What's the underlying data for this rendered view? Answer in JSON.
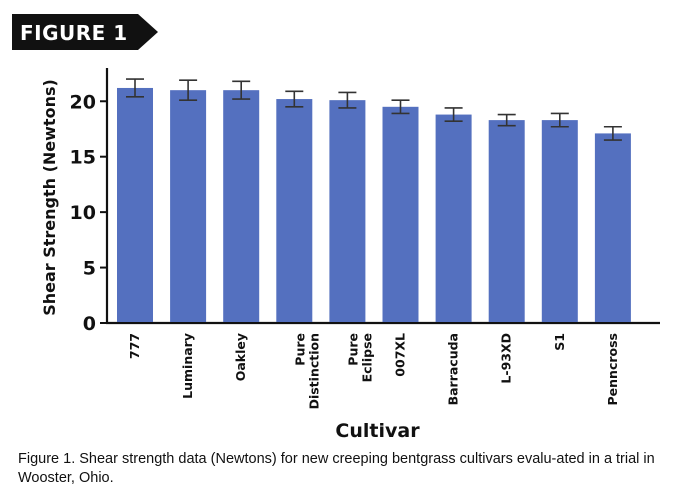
{
  "figure_label": "FIGURE 1",
  "caption": "Figure 1. Shear strength data (Newtons) for new creeping bentgrass cultivars evalu-ated in a trial in Wooster, Ohio.",
  "chart_data": {
    "type": "bar",
    "ylabel": "Shear Strength (Newtons)",
    "xlabel": "Cultivar",
    "ylim": [
      0,
      23
    ],
    "yticks": [
      0,
      5,
      10,
      15,
      20
    ],
    "grid": false,
    "legend": "none",
    "bar_color": "#5470bf",
    "categories": [
      [
        "777"
      ],
      [
        "Luminary"
      ],
      [
        "Oakley"
      ],
      [
        "Pure",
        "Distinction"
      ],
      [
        "Pure",
        "Eclipse"
      ],
      [
        "007XL"
      ],
      [
        "Barracuda"
      ],
      [
        "L-93XD"
      ],
      [
        "S1"
      ],
      [
        "Penncross"
      ]
    ],
    "values": [
      21.2,
      21.0,
      21.0,
      20.2,
      20.1,
      19.5,
      18.8,
      18.3,
      18.3,
      17.1
    ],
    "error": [
      0.8,
      0.9,
      0.8,
      0.7,
      0.7,
      0.6,
      0.6,
      0.5,
      0.6,
      0.6
    ]
  }
}
